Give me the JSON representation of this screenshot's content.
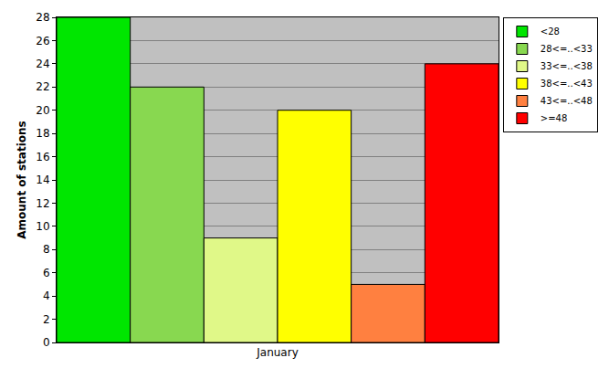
{
  "chart_data": {
    "type": "bar",
    "y_label": "Amount of stations",
    "categories": [
      "January"
    ],
    "series": [
      {
        "name": "<28",
        "color": "#00e600",
        "values": [
          28
        ]
      },
      {
        "name": "28<=..<33",
        "color": "#88d850",
        "values": [
          22
        ]
      },
      {
        "name": "33<=..<38",
        "color": "#e0f888",
        "values": [
          9
        ]
      },
      {
        "name": "38<=..<43",
        "color": "#ffff00",
        "values": [
          20
        ]
      },
      {
        "name": "43<=..<48",
        "color": "#ff8040",
        "values": [
          5
        ]
      },
      {
        "name": ">=48",
        "color": "#ff0000",
        "values": [
          24
        ]
      }
    ],
    "ylim": [
      0,
      28
    ],
    "yticks": [
      0,
      2,
      4,
      6,
      8,
      10,
      12,
      14,
      16,
      18,
      20,
      22,
      24,
      26,
      28
    ],
    "grid": true,
    "legend": "top right"
  }
}
